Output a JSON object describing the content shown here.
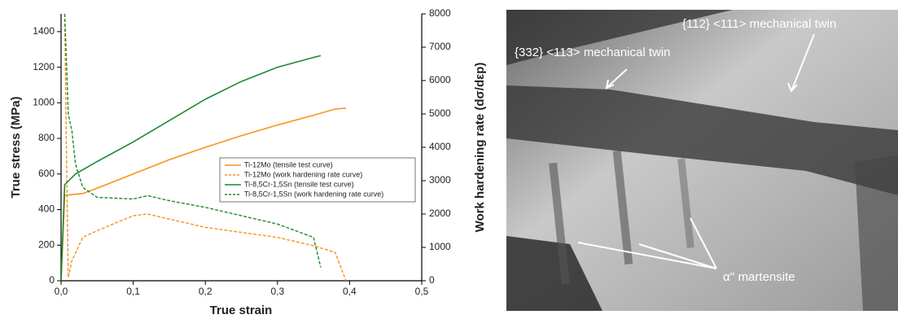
{
  "chart_data": {
    "type": "line",
    "xlabel": "True strain",
    "ylabel": "True stress (MPa)",
    "y2label": "Work hardening rate (dσ/dεp)",
    "xlim": [
      0,
      0.5
    ],
    "ylim": [
      0,
      1500
    ],
    "y2lim": [
      0,
      8000
    ],
    "xticks": [
      {
        "value": 0,
        "label": "0,0"
      },
      {
        "value": 0.1,
        "label": "0,1"
      },
      {
        "value": 0.2,
        "label": "0,2"
      },
      {
        "value": 0.3,
        "label": "0,3"
      },
      {
        "value": 0.4,
        "label": "0,4"
      },
      {
        "value": 0.5,
        "label": "0,5"
      }
    ],
    "yticks": [
      0,
      200,
      400,
      600,
      800,
      1000,
      1200,
      1400
    ],
    "y2ticks": [
      0,
      1000,
      2000,
      3000,
      4000,
      5000,
      6000,
      7000,
      8000
    ],
    "legend": "center right",
    "series": [
      {
        "name": "Ti-12Mo (tensile test curve)",
        "color": "#f7941d",
        "dash": false,
        "x": [
          0,
          0.005,
          0.03,
          0.05,
          0.1,
          0.15,
          0.2,
          0.25,
          0.3,
          0.35,
          0.38,
          0.395
        ],
        "values": [
          0,
          480,
          490,
          520,
          600,
          680,
          750,
          815,
          875,
          930,
          965,
          970
        ]
      },
      {
        "name": "Ti-12Mo (work hardening rate curve)",
        "color": "#f7941d",
        "dash": true,
        "axis": "y2",
        "x": [
          0.005,
          0.008,
          0.01,
          0.015,
          0.03,
          0.05,
          0.1,
          0.12,
          0.15,
          0.2,
          0.25,
          0.3,
          0.35,
          0.38,
          0.395
        ],
        "values": [
          8000,
          3000,
          100,
          600,
          1300,
          1500,
          1950,
          2000,
          1850,
          1600,
          1450,
          1300,
          1050,
          850,
          0
        ]
      },
      {
        "name": "Ti-8,5Cr-1,5Sn (tensile test curve)",
        "color": "#1b8a2e",
        "dash": false,
        "x": [
          0,
          0.005,
          0.02,
          0.05,
          0.1,
          0.15,
          0.2,
          0.25,
          0.3,
          0.35,
          0.36
        ],
        "values": [
          0,
          540,
          600,
          670,
          780,
          900,
          1020,
          1120,
          1200,
          1255,
          1265
        ]
      },
      {
        "name": "Ti-8,5Cr-1,5Sn (work hardening rate curve)",
        "color": "#1b8a2e",
        "dash": true,
        "axis": "y2",
        "x": [
          0.005,
          0.01,
          0.015,
          0.02,
          0.03,
          0.05,
          0.1,
          0.12,
          0.15,
          0.2,
          0.25,
          0.3,
          0.35,
          0.36
        ],
        "values": [
          8000,
          5000,
          4500,
          3500,
          2800,
          2500,
          2450,
          2550,
          2400,
          2200,
          1950,
          1700,
          1300,
          400
        ]
      }
    ]
  },
  "image": {
    "annotations": [
      "{112} <111> mechanical twin",
      "{332} <113> mechanical twin",
      "α'' martensite"
    ]
  }
}
